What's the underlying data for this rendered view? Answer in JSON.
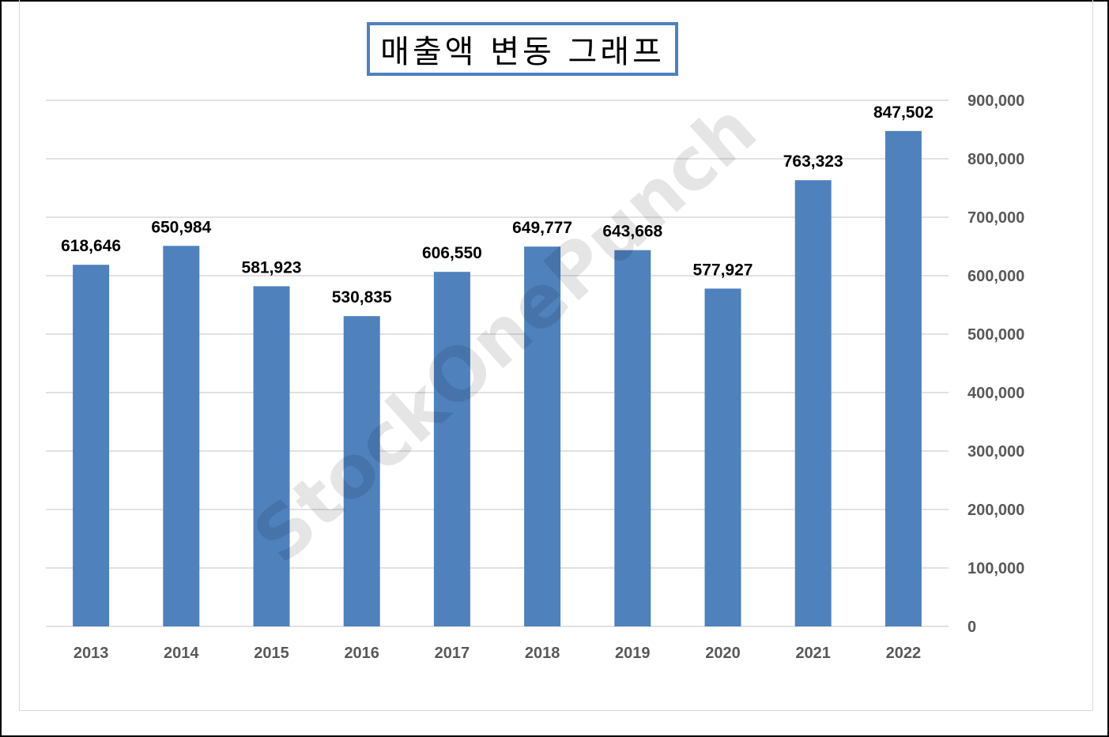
{
  "chart_data": {
    "type": "bar",
    "title": "매출액 변동 그래프",
    "xlabel": "",
    "ylabel": "",
    "categories": [
      "2013",
      "2014",
      "2015",
      "2016",
      "2017",
      "2018",
      "2019",
      "2020",
      "2021",
      "2022"
    ],
    "values": [
      618646,
      650984,
      581923,
      530835,
      606550,
      649777,
      643668,
      577927,
      763323,
      847502
    ],
    "data_labels": [
      "618,646",
      "650,984",
      "581,923",
      "530,835",
      "606,550",
      "649,777",
      "643,668",
      "577,927",
      "763,323",
      "847,502"
    ],
    "ylim": [
      0,
      900000
    ],
    "y_ticks": [
      "0",
      "100,000",
      "200,000",
      "300,000",
      "400,000",
      "500,000",
      "600,000",
      "700,000",
      "800,000",
      "900,000"
    ],
    "y_axis_side": "right",
    "grid": true,
    "legend": "none",
    "bar_color": "#4f81bd"
  },
  "watermark": "StockOnePunch"
}
